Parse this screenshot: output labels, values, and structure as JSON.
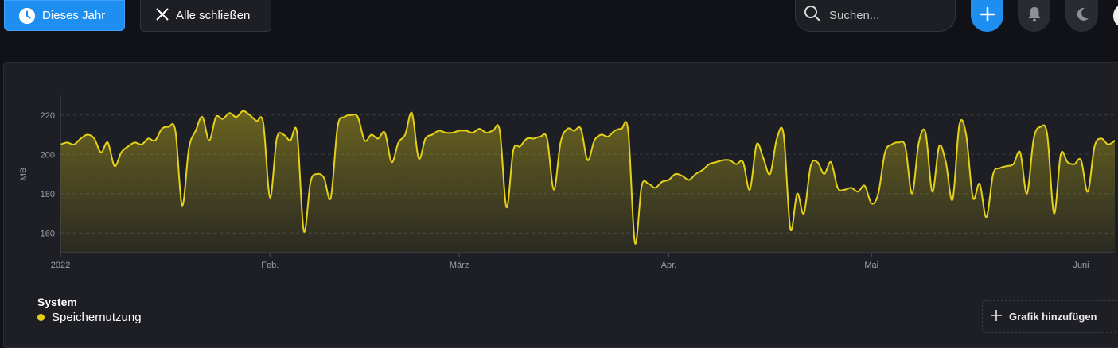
{
  "toolbar": {
    "range_label": "Dieses Jahr",
    "close_all_label": "Alle schließen",
    "search_placeholder": "Suchen..."
  },
  "icons": {
    "range": "clock-icon",
    "close": "close-icon",
    "search": "search-icon",
    "add": "plus-icon",
    "notifications": "bell-icon",
    "theme": "moon-icon"
  },
  "colors": {
    "accent": "#1f8ef1",
    "series": "#e4d117",
    "background": "#111217",
    "panel": "#1e1f24"
  },
  "legend": {
    "group": "System",
    "series_label": "Speichernutzung"
  },
  "add_chart_label": "Grafik hinzufügen",
  "chart_data": {
    "type": "area",
    "ylabel": "MB",
    "ylim": [
      150,
      230
    ],
    "yticks": [
      160,
      180,
      200,
      220
    ],
    "grid": true,
    "xlim": [
      "2022-01-01",
      "2022-06-06"
    ],
    "xticks": [
      {
        "date": "2022-01-01",
        "label": "2022"
      },
      {
        "date": "2022-02-01",
        "label": "Feb."
      },
      {
        "date": "2022-03-01",
        "label": "März"
      },
      {
        "date": "2022-04-01",
        "label": "Apr."
      },
      {
        "date": "2022-05-01",
        "label": "Mai"
      },
      {
        "date": "2022-06-01",
        "label": "Juni"
      }
    ],
    "series": [
      {
        "name": "Speichernutzung",
        "points": [
          [
            "2022-01-01",
            205
          ],
          [
            "2022-01-02",
            206
          ],
          [
            "2022-01-03",
            205
          ],
          [
            "2022-01-04",
            208
          ],
          [
            "2022-01-05",
            210
          ],
          [
            "2022-01-06",
            208
          ],
          [
            "2022-01-07",
            201
          ],
          [
            "2022-01-08",
            206
          ],
          [
            "2022-01-09",
            194
          ],
          [
            "2022-01-10",
            201
          ],
          [
            "2022-01-11",
            204
          ],
          [
            "2022-01-12",
            206
          ],
          [
            "2022-01-13",
            205
          ],
          [
            "2022-01-14",
            208
          ],
          [
            "2022-01-15",
            207
          ],
          [
            "2022-01-16",
            213
          ],
          [
            "2022-01-17",
            214
          ],
          [
            "2022-01-18",
            212
          ],
          [
            "2022-01-19",
            174
          ],
          [
            "2022-01-20",
            203
          ],
          [
            "2022-01-21",
            212
          ],
          [
            "2022-01-22",
            219
          ],
          [
            "2022-01-23",
            207
          ],
          [
            "2022-01-24",
            219
          ],
          [
            "2022-01-25",
            218
          ],
          [
            "2022-01-26",
            221
          ],
          [
            "2022-01-27",
            219
          ],
          [
            "2022-01-28",
            222
          ],
          [
            "2022-01-29",
            220
          ],
          [
            "2022-01-30",
            217
          ],
          [
            "2022-01-31",
            216
          ],
          [
            "2022-02-01",
            178
          ],
          [
            "2022-02-02",
            208
          ],
          [
            "2022-02-03",
            210
          ],
          [
            "2022-02-04",
            207
          ],
          [
            "2022-02-05",
            211
          ],
          [
            "2022-02-06",
            161
          ],
          [
            "2022-02-07",
            186
          ],
          [
            "2022-02-08",
            190
          ],
          [
            "2022-02-09",
            188
          ],
          [
            "2022-02-10",
            178
          ],
          [
            "2022-02-11",
            214
          ],
          [
            "2022-02-12",
            219
          ],
          [
            "2022-02-13",
            220
          ],
          [
            "2022-02-14",
            219
          ],
          [
            "2022-02-15",
            207
          ],
          [
            "2022-02-16",
            210
          ],
          [
            "2022-02-17",
            208
          ],
          [
            "2022-02-18",
            211
          ],
          [
            "2022-02-19",
            196
          ],
          [
            "2022-02-20",
            206
          ],
          [
            "2022-02-21",
            210
          ],
          [
            "2022-02-22",
            221
          ],
          [
            "2022-02-23",
            198
          ],
          [
            "2022-02-24",
            208
          ],
          [
            "2022-02-25",
            210
          ],
          [
            "2022-02-26",
            212
          ],
          [
            "2022-02-27",
            211
          ],
          [
            "2022-02-28",
            211
          ],
          [
            "2022-03-01",
            212
          ],
          [
            "2022-03-02",
            212
          ],
          [
            "2022-03-03",
            211
          ],
          [
            "2022-03-04",
            213
          ],
          [
            "2022-03-05",
            211
          ],
          [
            "2022-03-06",
            212
          ],
          [
            "2022-03-07",
            212
          ],
          [
            "2022-03-08",
            173
          ],
          [
            "2022-03-09",
            202
          ],
          [
            "2022-03-10",
            204
          ],
          [
            "2022-03-11",
            208
          ],
          [
            "2022-03-12",
            208
          ],
          [
            "2022-03-13",
            209
          ],
          [
            "2022-03-14",
            208
          ],
          [
            "2022-03-15",
            182
          ],
          [
            "2022-03-16",
            206
          ],
          [
            "2022-03-17",
            213
          ],
          [
            "2022-03-18",
            212
          ],
          [
            "2022-03-19",
            213
          ],
          [
            "2022-03-20",
            197
          ],
          [
            "2022-03-21",
            207
          ],
          [
            "2022-03-22",
            210
          ],
          [
            "2022-03-23",
            209
          ],
          [
            "2022-03-24",
            212
          ],
          [
            "2022-03-25",
            213
          ],
          [
            "2022-03-26",
            212
          ],
          [
            "2022-03-27",
            155
          ],
          [
            "2022-03-28",
            184
          ],
          [
            "2022-03-29",
            185
          ],
          [
            "2022-03-30",
            183
          ],
          [
            "2022-03-31",
            186
          ],
          [
            "2022-04-01",
            187
          ],
          [
            "2022-04-02",
            190
          ],
          [
            "2022-04-03",
            189
          ],
          [
            "2022-04-04",
            187
          ],
          [
            "2022-04-05",
            190
          ],
          [
            "2022-04-06",
            192
          ],
          [
            "2022-04-07",
            195
          ],
          [
            "2022-04-08",
            196
          ],
          [
            "2022-04-09",
            197
          ],
          [
            "2022-04-10",
            197
          ],
          [
            "2022-04-11",
            195
          ],
          [
            "2022-04-12",
            196
          ],
          [
            "2022-04-13",
            182
          ],
          [
            "2022-04-14",
            205
          ],
          [
            "2022-04-15",
            198
          ],
          [
            "2022-04-16",
            190
          ],
          [
            "2022-04-17",
            208
          ],
          [
            "2022-04-18",
            210
          ],
          [
            "2022-04-19",
            162
          ],
          [
            "2022-04-20",
            180
          ],
          [
            "2022-04-21",
            170
          ],
          [
            "2022-04-22",
            194
          ],
          [
            "2022-04-23",
            196
          ],
          [
            "2022-04-24",
            190
          ],
          [
            "2022-04-25",
            196
          ],
          [
            "2022-04-26",
            183
          ],
          [
            "2022-04-27",
            182
          ],
          [
            "2022-04-28",
            183
          ],
          [
            "2022-04-29",
            181
          ],
          [
            "2022-04-30",
            184
          ],
          [
            "2022-05-01",
            175
          ],
          [
            "2022-05-02",
            180
          ],
          [
            "2022-05-03",
            201
          ],
          [
            "2022-05-04",
            205
          ],
          [
            "2022-05-05",
            206
          ],
          [
            "2022-05-06",
            204
          ],
          [
            "2022-05-07",
            180
          ],
          [
            "2022-05-08",
            206
          ],
          [
            "2022-05-09",
            211
          ],
          [
            "2022-05-10",
            181
          ],
          [
            "2022-05-11",
            204
          ],
          [
            "2022-05-12",
            196
          ],
          [
            "2022-05-13",
            177
          ],
          [
            "2022-05-14",
            215
          ],
          [
            "2022-05-15",
            210
          ],
          [
            "2022-05-16",
            178
          ],
          [
            "2022-05-17",
            185
          ],
          [
            "2022-05-18",
            168
          ],
          [
            "2022-05-19",
            190
          ],
          [
            "2022-05-20",
            193
          ],
          [
            "2022-05-21",
            194
          ],
          [
            "2022-05-22",
            195
          ],
          [
            "2022-05-23",
            201
          ],
          [
            "2022-05-24",
            180
          ],
          [
            "2022-05-25",
            208
          ],
          [
            "2022-05-26",
            214
          ],
          [
            "2022-05-27",
            210
          ],
          [
            "2022-05-28",
            170
          ],
          [
            "2022-05-29",
            200
          ],
          [
            "2022-05-30",
            196
          ],
          [
            "2022-05-31",
            195
          ],
          [
            "2022-06-01",
            197
          ],
          [
            "2022-06-02",
            181
          ],
          [
            "2022-06-03",
            204
          ],
          [
            "2022-06-04",
            208
          ],
          [
            "2022-06-05",
            205
          ],
          [
            "2022-06-06",
            207
          ]
        ]
      }
    ]
  }
}
